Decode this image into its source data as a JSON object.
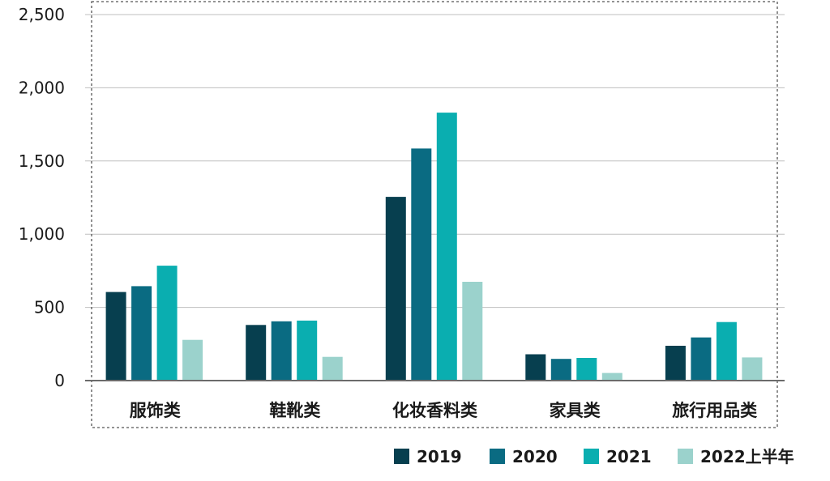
{
  "chart_data": {
    "type": "bar",
    "categories": [
      "服饰类",
      "鞋靴类",
      "化妆香料类",
      "家具类",
      "旅行用品类"
    ],
    "series": [
      {
        "name": "2019",
        "color": "#073f4f",
        "values": [
          605,
          380,
          1255,
          180,
          238
        ]
      },
      {
        "name": "2020",
        "color": "#0a6b82",
        "values": [
          645,
          405,
          1585,
          148,
          295
        ]
      },
      {
        "name": "2021",
        "color": "#0aaeb0",
        "values": [
          785,
          410,
          1830,
          155,
          400
        ]
      },
      {
        "name": "2022上半年",
        "color": "#9bd2cc",
        "values": [
          278,
          162,
          675,
          52,
          158
        ]
      }
    ],
    "ylim": [
      0,
      2500
    ],
    "yticks": [
      "0",
      "500",
      "1,000",
      "1,500",
      "2,000",
      "2,500"
    ],
    "ytick_values": [
      0,
      500,
      1000,
      1500,
      2000,
      2500
    ],
    "grid": true,
    "legend": "bottom-right"
  }
}
